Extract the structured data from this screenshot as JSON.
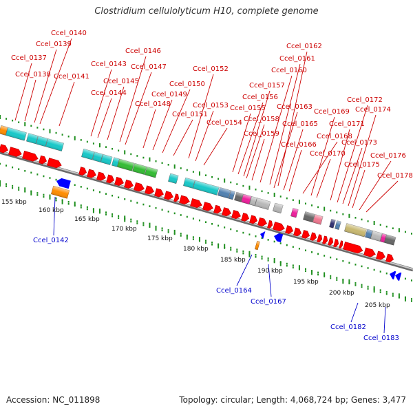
{
  "title": "Clostridium cellulolyticum H10, complete genome",
  "footer": {
    "accession": "Accession: NC_011898",
    "stats": "Topology: circular; Length: 4,068,724 bp; Genes: 3,477"
  },
  "colors": {
    "cds": "#ff0000",
    "backbone": "#8f8f8f",
    "tick": "#1f8f1f",
    "label_top": "#cc0000",
    "label_bottom": "#0000cc",
    "reverse_cds": "#0000ff",
    "cog_cyan": "#18c8c8",
    "cog_green": "#33bb33",
    "cog_orange": "#ff8c00",
    "cog_steelblue": "#5080b0",
    "cog_magenta": "#ee1e9c",
    "cog_gray": "#b8b8b8",
    "cog_darkgray": "#666666",
    "cog_pink": "#f07890",
    "cog_navy": "#303070",
    "cog_olive": "#c8b870"
  },
  "scale_labels": [
    "155 kbp",
    "160 kbp",
    "165 kbp",
    "170 kbp",
    "175 kbp",
    "180 kbp",
    "185 kbp",
    "190 kbp",
    "195 kbp",
    "200 kbp",
    "205 kbp"
  ],
  "top_genes": [
    "Ccel_0137",
    "Ccel_0138",
    "Ccel_0139",
    "Ccel_0140",
    "Ccel_0141",
    "Ccel_0143",
    "Ccel_0144",
    "Ccel_0145",
    "Ccel_0146",
    "Ccel_0147",
    "Ccel_0148",
    "Ccel_0149",
    "Ccel_0150",
    "Ccel_0151",
    "Ccel_0152",
    "Ccel_0153",
    "Ccel_0154",
    "Ccel_0155",
    "Ccel_0156",
    "Ccel_0157",
    "Ccel_0158",
    "Ccel_0159",
    "Ccel_0160",
    "Ccel_0161",
    "Ccel_0162",
    "Ccel_0163",
    "Ccel_0165",
    "Ccel_0166",
    "Ccel_0168",
    "Ccel_0169",
    "Ccel_0170",
    "Ccel_0171",
    "Ccel_0172",
    "Ccel_0173",
    "Ccel_0174",
    "Ccel_0175",
    "Ccel_0176",
    "Ccel_0178"
  ],
  "bottom_genes": [
    "Ccel_0142",
    "Ccel_0164",
    "Ccel_0167",
    "Ccel_0182",
    "Ccel_0183"
  ]
}
